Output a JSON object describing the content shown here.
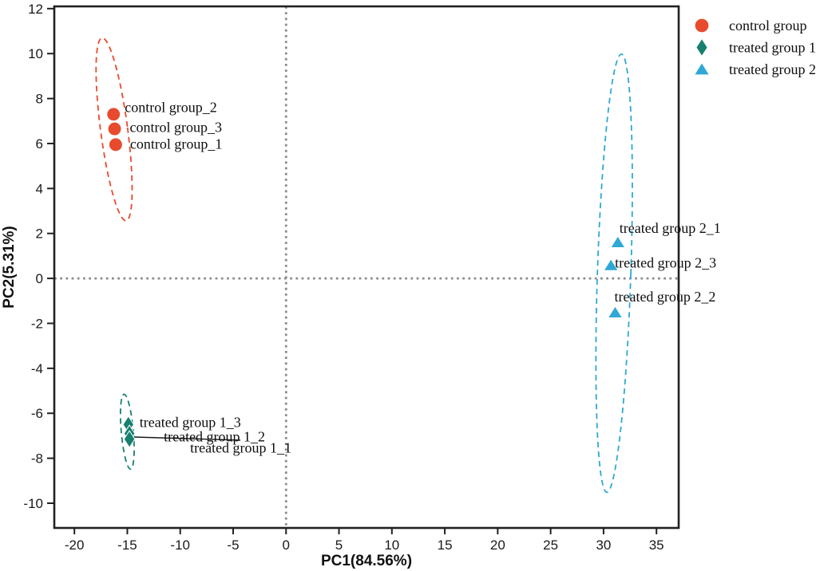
{
  "chart_data": {
    "type": "scatter",
    "title": "",
    "xlabel": "PC1(84.56%)",
    "ylabel": "PC2(5.31%)",
    "xlim": [
      -21.9,
      37.1
    ],
    "ylim": [
      -11.1,
      12.1
    ],
    "x_ticks": [
      -20,
      -15,
      -10,
      -5,
      0,
      5,
      10,
      15,
      20,
      25,
      30,
      35
    ],
    "y_ticks": [
      12,
      10,
      8,
      6,
      4,
      2,
      0,
      -2,
      -4,
      -6,
      -8,
      -10
    ],
    "grid": false,
    "legend_position": "top-right-outside",
    "background_color": "#ffffff",
    "axis_color": "#212121",
    "zero_line_color": "#8c8c8c",
    "label_color": "#0d0d0d",
    "zero_reference_lines": {
      "x": 0,
      "y": 0,
      "style": "dotted"
    },
    "series": [
      {
        "name": "control group",
        "marker": "circle",
        "color": "#e84a2d",
        "points": [
          {
            "label": "control group_2",
            "x": -16.3,
            "y": 7.3,
            "label_dx": 14,
            "label_dy": -3
          },
          {
            "label": "control group_3",
            "x": -16.2,
            "y": 6.65,
            "label_dx": 19,
            "label_dy": 4
          },
          {
            "label": "control group_1",
            "x": -16.1,
            "y": 5.95,
            "label_dx": 18,
            "label_dy": 5
          }
        ],
        "ellipse": {
          "cx": -16.25,
          "cy": 6.63,
          "rx": 1.28,
          "ry": 4.1,
          "angle": -7.5
        }
      },
      {
        "name": "treated group 1",
        "marker": "diamond",
        "color": "#17806f",
        "points": [
          {
            "label": "treated group 1_3",
            "x": -14.9,
            "y": -6.5,
            "label_dx": 14,
            "label_dy": 3
          },
          {
            "label": "treated group 1_2",
            "x": -14.8,
            "y": -6.9,
            "label_dx": 43,
            "label_dy": 10
          },
          {
            "label": "treated group 1_1",
            "x": -14.8,
            "y": -7.15,
            "label_dx": 76,
            "label_dy": 17
          }
        ],
        "ellipse": {
          "cx": -15.0,
          "cy": -6.82,
          "rx": 0.57,
          "ry": 1.67,
          "angle": -5
        },
        "leader_line": {
          "x1": 168,
          "y1": 548,
          "x2": 301,
          "y2": 552
        }
      },
      {
        "name": "treated group 2",
        "marker": "triangle",
        "color": "#2fa8d5",
        "points": [
          {
            "label": "treated group 2_1",
            "x": 31.35,
            "y": 1.6,
            "label_dx": 2,
            "label_dy": -12
          },
          {
            "label": "treated group 2_3",
            "x": 30.7,
            "y": 0.58,
            "label_dx": 5,
            "label_dy": 3
          },
          {
            "label": "treated group 2_2",
            "x": 31.1,
            "y": -1.52,
            "label_dx": -1,
            "label_dy": -14
          }
        ],
        "ellipse": {
          "cx": 31.0,
          "cy": 0.23,
          "rx": 1.58,
          "ry": 9.75,
          "angle": 1.9
        }
      }
    ],
    "legend": {
      "entries": [
        {
          "label": "control group",
          "marker": "circle",
          "color": "#e84a2d"
        },
        {
          "label": "treated group 1",
          "marker": "diamond",
          "color": "#17806f"
        },
        {
          "label": "treated group 2",
          "marker": "triangle",
          "color": "#2fa8d5"
        }
      ]
    }
  }
}
